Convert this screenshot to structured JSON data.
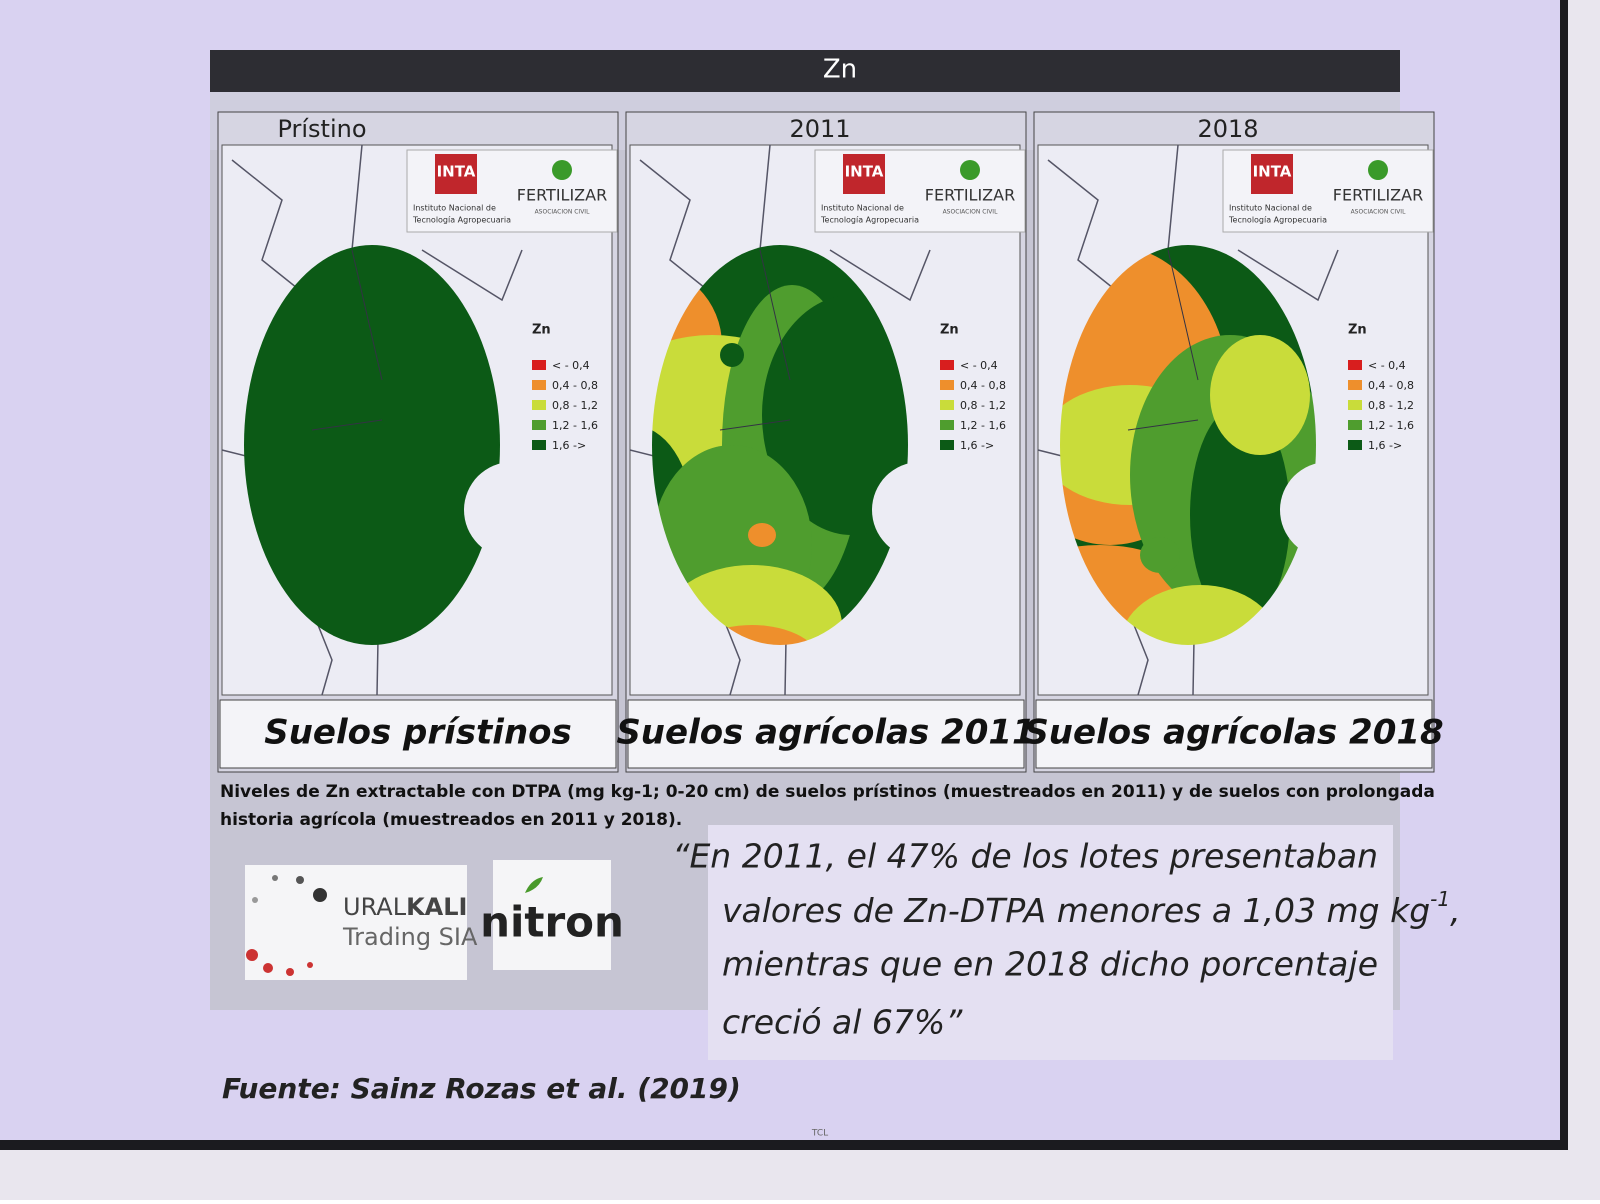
{
  "header": {
    "title": "Zn"
  },
  "panels": [
    {
      "label": "Prístino",
      "caption": "Suelos prístinos"
    },
    {
      "label": "2011",
      "caption": "Suelos agrícolas 2011"
    },
    {
      "label": "2018",
      "caption": "Suelos agrícolas 2018"
    }
  ],
  "logos": {
    "inta": "INTA",
    "inta_name": [
      "Instituto Nacional de",
      "Tecnología Agropecuaria"
    ],
    "fertilizar": "FERTILIZAR",
    "fertilizar_sub": "ASOCIACION CIVIL"
  },
  "legend": {
    "title": "Zn",
    "items": [
      {
        "label": "< - 0,4",
        "color": "#d81e1e"
      },
      {
        "label": "0,4 - 0,8",
        "color": "#ee8f2c"
      },
      {
        "label": "0,8 - 1,2",
        "color": "#c9dc3a"
      },
      {
        "label": "1,2 - 1,6",
        "color": "#4f9d2e"
      },
      {
        "label": "1,6 ->",
        "color": "#0c5a16"
      }
    ]
  },
  "figure_caption": [
    "Niveles de Zn extractable con DTPA (mg kg-1; 0-20 cm) de suelos prístinos (muestreados en 2011) y de suelos con prolongada",
    "historia agrícola (muestreados en 2011 y 2018)."
  ],
  "sponsors": {
    "ural": "URAL",
    "kali": "KALI",
    "trading": "Trading SIA",
    "nitron": "nitron"
  },
  "quote": {
    "line1": "“En 2011, el 47% de los lotes presentaban",
    "line2": "valores de Zn-DTPA menores a 1,03 mg kg",
    "line2_sup": "-1",
    "line2_end": ",",
    "line3": "mientras que en 2018 dicho porcentaje",
    "line4": "creció al 67%”"
  },
  "source": "Fuente: Sainz Rozas et al. (2019)",
  "tv_brand": "TCL"
}
